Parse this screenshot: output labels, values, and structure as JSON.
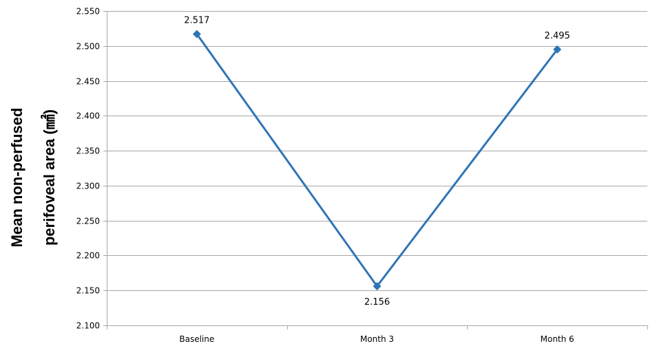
{
  "chart_data": {
    "type": "line",
    "title": "",
    "xlabel": "",
    "ylabel_lines": [
      "Mean non-perfused",
      "perifoveal area (㎟)"
    ],
    "categories": [
      "Baseline",
      "Month 3",
      "Month 6"
    ],
    "series": [
      {
        "values": [
          2.517,
          2.156,
          2.495
        ],
        "color": "#2E75B6"
      }
    ],
    "data_labels": [
      "2.517",
      "2.156",
      "2.495"
    ],
    "ylim": [
      2.1,
      2.55
    ],
    "y_ticks": [
      2.1,
      2.15,
      2.2,
      2.25,
      2.3,
      2.35,
      2.4,
      2.45,
      2.5,
      2.55
    ],
    "y_tick_labels": [
      "2.100",
      "2.150",
      "2.200",
      "2.250",
      "2.300",
      "2.350",
      "2.400",
      "2.450",
      "2.500",
      "2.550"
    ],
    "grid": true,
    "legend": "none",
    "colors": {
      "line": "#2E75B6",
      "grid": "#A6A6A6",
      "axis": "#A6A6A6"
    }
  }
}
